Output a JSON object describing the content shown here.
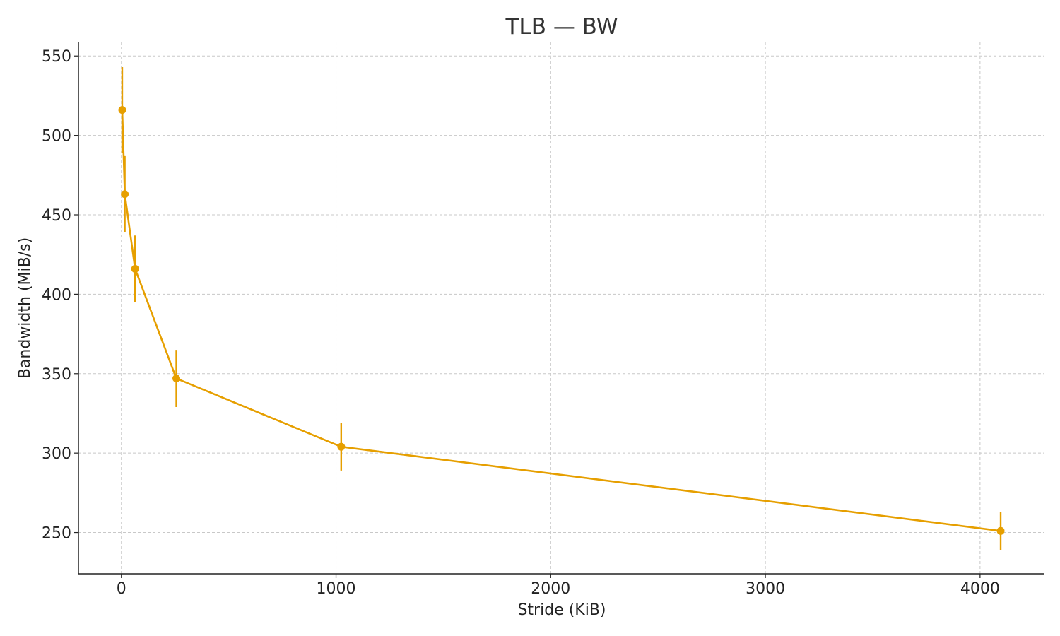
{
  "chart_data": {
    "type": "line",
    "title": "TLB — BW",
    "xlabel": "Stride (KiB)",
    "ylabel": "Bandwidth (MiB/s)",
    "xlim": [
      -200,
      4300
    ],
    "ylim": [
      224,
      559
    ],
    "xticks": [
      0,
      1000,
      2000,
      3000,
      4000
    ],
    "yticks": [
      250,
      300,
      350,
      400,
      450,
      500,
      550
    ],
    "grid": true,
    "color": "#E69F00",
    "series": [
      {
        "x": [
          4,
          16,
          64,
          256,
          1024,
          4096
        ],
        "y": [
          516,
          463,
          416,
          347,
          304,
          251
        ],
        "error": [
          27,
          24,
          21,
          18,
          15,
          12
        ]
      }
    ]
  }
}
